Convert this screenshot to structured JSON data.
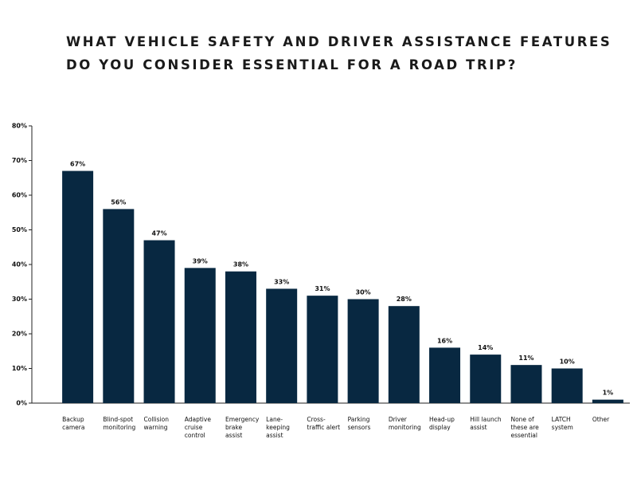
{
  "chart_data": {
    "type": "bar",
    "title": [
      "WHAT VEHICLE SAFETY AND DRIVER ASSISTANCE FEATURES",
      "DO YOU CONSIDER ESSENTIAL FOR A ROAD TRIP?"
    ],
    "categories": [
      "Backup camera",
      "Blind-spot monitoring",
      "Collision warning",
      "Adaptive cruise control",
      "Emergency brake assist",
      "Lane-keeping assist",
      "Cross-traffic alert",
      "Parking sensors",
      "Driver monitoring",
      "Head-up display",
      "Hill launch assist",
      "None of these are essential",
      "LATCH system",
      "Other"
    ],
    "values": [
      67,
      56,
      47,
      39,
      38,
      33,
      31,
      30,
      28,
      16,
      14,
      11,
      10,
      1
    ],
    "value_labels": [
      "67%",
      "56%",
      "47%",
      "39%",
      "38%",
      "33%",
      "31%",
      "30%",
      "28%",
      "16%",
      "14%",
      "11%",
      "10%",
      "1%"
    ],
    "color": "#082841",
    "ylim": [
      0,
      80
    ],
    "yticks": [
      {
        "value": 0,
        "label": "0%"
      },
      {
        "value": 10,
        "label": "10%"
      },
      {
        "value": 20,
        "label": "20%"
      },
      {
        "value": 30,
        "label": "30%"
      },
      {
        "value": 40,
        "label": "40%"
      },
      {
        "value": 50,
        "label": "50%"
      },
      {
        "value": 60,
        "label": "60%"
      },
      {
        "value": 70,
        "label": "70%"
      },
      {
        "value": 80,
        "label": "80%"
      }
    ]
  }
}
